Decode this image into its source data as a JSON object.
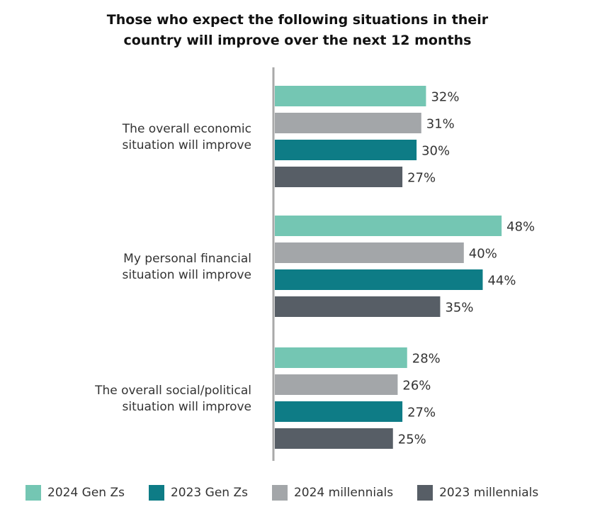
{
  "chart_data": {
    "type": "bar",
    "orientation": "horizontal",
    "title_lines": [
      "Those who expect the following situations in their",
      "country will improve over the next 12 months"
    ],
    "categories": [
      {
        "lines": [
          "The overall economic",
          "situation will improve"
        ]
      },
      {
        "lines": [
          "My personal financial",
          "situation will improve"
        ]
      },
      {
        "lines": [
          "The overall social/political",
          "situation will improve"
        ]
      }
    ],
    "series": [
      {
        "name": "2024 Gen Zs",
        "color": "#74c6b3",
        "values": [
          32,
          48,
          28
        ]
      },
      {
        "name": "2024 millennials",
        "color": "#a3a6a9",
        "values": [
          31,
          40,
          26
        ]
      },
      {
        "name": "2023 Gen Zs",
        "color": "#0e7c86",
        "values": [
          30,
          44,
          27
        ]
      },
      {
        "name": "2023 millennials",
        "color": "#575e66",
        "values": [
          27,
          35,
          25
        ]
      }
    ],
    "value_suffix": "%",
    "xlim": [
      0,
      50
    ],
    "grid": false,
    "legend_position": "bottom",
    "legend_order": [
      "2024 Gen Zs",
      "2023 Gen Zs",
      "2024 millennials",
      "2023 millennials"
    ]
  }
}
